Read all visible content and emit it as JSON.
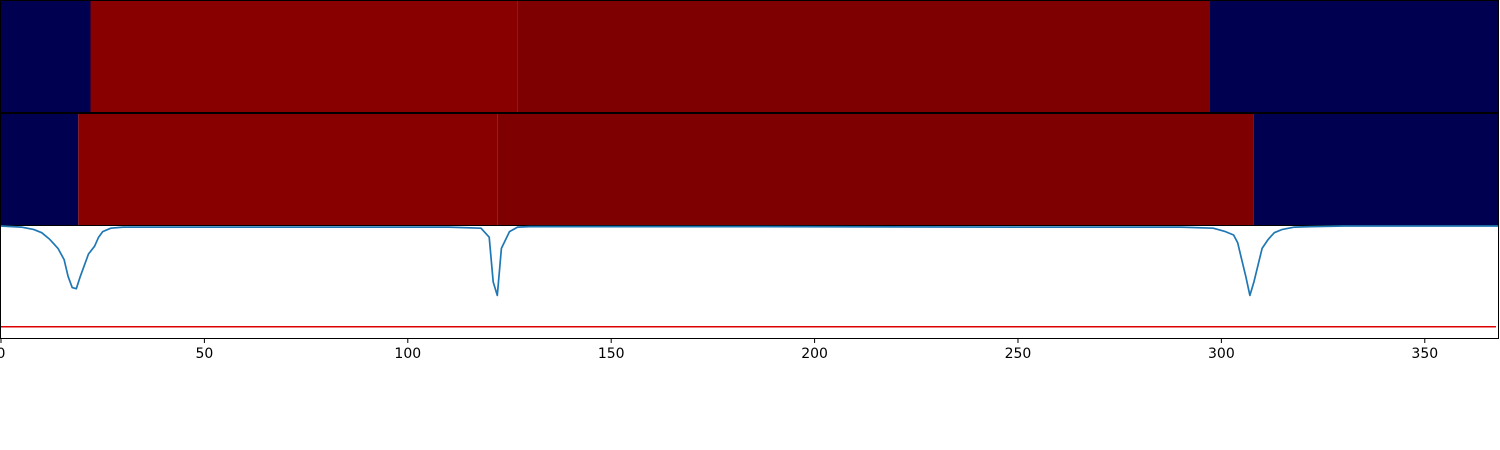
{
  "chart_data": [
    {
      "type": "heatmap",
      "panel": "top",
      "xlim": [
        0,
        368
      ],
      "segments": [
        {
          "x0": 0,
          "x1": 22,
          "color": "#000050"
        },
        {
          "x0": 22,
          "x1": 127,
          "color": "#880000"
        },
        {
          "x0": 127,
          "x1": 297,
          "color": "#7f0000"
        },
        {
          "x0": 297,
          "x1": 368,
          "color": "#000050"
        }
      ]
    },
    {
      "type": "heatmap",
      "panel": "middle",
      "xlim": [
        0,
        368
      ],
      "segments": [
        {
          "x0": 0,
          "x1": 19,
          "color": "#000050"
        },
        {
          "x0": 19,
          "x1": 122,
          "color": "#880000"
        },
        {
          "x0": 122,
          "x1": 308,
          "color": "#7f0000"
        },
        {
          "x0": 308,
          "x1": 368,
          "color": "#000050"
        }
      ]
    },
    {
      "type": "line",
      "panel": "bottom",
      "xlim": [
        0,
        368
      ],
      "ylim": [
        -1.0,
        0.0
      ],
      "xticks": [
        0,
        50,
        100,
        150,
        200,
        250,
        300,
        350
      ],
      "xtick_labels": [
        "0",
        "50",
        "100",
        "150",
        "200",
        "250",
        "300",
        "350"
      ],
      "grid": false,
      "series": [
        {
          "color": "#1f77b4",
          "x": [
            0,
            5,
            8,
            10,
            12,
            14,
            15.5,
            16.5,
            17.5,
            18.5,
            19.5,
            20.5,
            21.5,
            23,
            24,
            25,
            27,
            30,
            80,
            110,
            118,
            120,
            121,
            122,
            123,
            125,
            127,
            130,
            180,
            250,
            290,
            298,
            301,
            303,
            304,
            305,
            306,
            307,
            308,
            309,
            310,
            311.5,
            313,
            315,
            318,
            322,
            330,
            368
          ],
          "y": [
            0,
            -0.01,
            -0.03,
            -0.06,
            -0.12,
            -0.2,
            -0.3,
            -0.45,
            -0.55,
            -0.56,
            -0.45,
            -0.35,
            -0.25,
            -0.18,
            -0.1,
            -0.05,
            -0.02,
            -0.01,
            -0.01,
            -0.01,
            -0.02,
            -0.1,
            -0.5,
            -0.62,
            -0.2,
            -0.05,
            -0.01,
            -0.005,
            -0.005,
            -0.01,
            -0.01,
            -0.02,
            -0.05,
            -0.08,
            -0.15,
            -0.3,
            -0.45,
            -0.62,
            -0.5,
            -0.35,
            -0.2,
            -0.12,
            -0.06,
            -0.03,
            -0.01,
            -0.005,
            0,
            0
          ]
        }
      ],
      "hline": {
        "y": -0.9,
        "color": "#dd0000"
      }
    }
  ]
}
